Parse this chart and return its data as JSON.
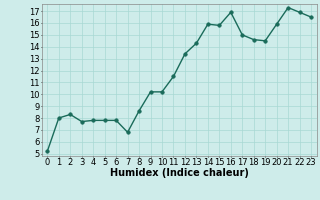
{
  "title": "",
  "xlabel": "Humidex (Indice chaleur)",
  "ylabel": "",
  "x": [
    0,
    1,
    2,
    3,
    4,
    5,
    6,
    7,
    8,
    9,
    10,
    11,
    12,
    13,
    14,
    15,
    16,
    17,
    18,
    19,
    20,
    21,
    22,
    23
  ],
  "y": [
    5.2,
    8.0,
    8.3,
    7.7,
    7.8,
    7.8,
    7.8,
    6.8,
    8.6,
    10.2,
    10.2,
    11.5,
    13.4,
    14.3,
    15.9,
    15.8,
    16.9,
    15.0,
    14.6,
    14.5,
    15.9,
    17.3,
    16.9,
    16.5
  ],
  "line_color": "#1a6b5a",
  "marker_color": "#1a6b5a",
  "bg_color": "#ceecea",
  "grid_color": "#a8d8d4",
  "xlim": [
    -0.5,
    23.5
  ],
  "ylim": [
    4.8,
    17.6
  ],
  "yticks": [
    5,
    6,
    7,
    8,
    9,
    10,
    11,
    12,
    13,
    14,
    15,
    16,
    17
  ],
  "xticks": [
    0,
    1,
    2,
    3,
    4,
    5,
    6,
    7,
    8,
    9,
    10,
    11,
    12,
    13,
    14,
    15,
    16,
    17,
    18,
    19,
    20,
    21,
    22,
    23
  ],
  "xlabel_fontsize": 7,
  "tick_fontsize": 6,
  "line_width": 1.0,
  "marker_size": 2.5
}
